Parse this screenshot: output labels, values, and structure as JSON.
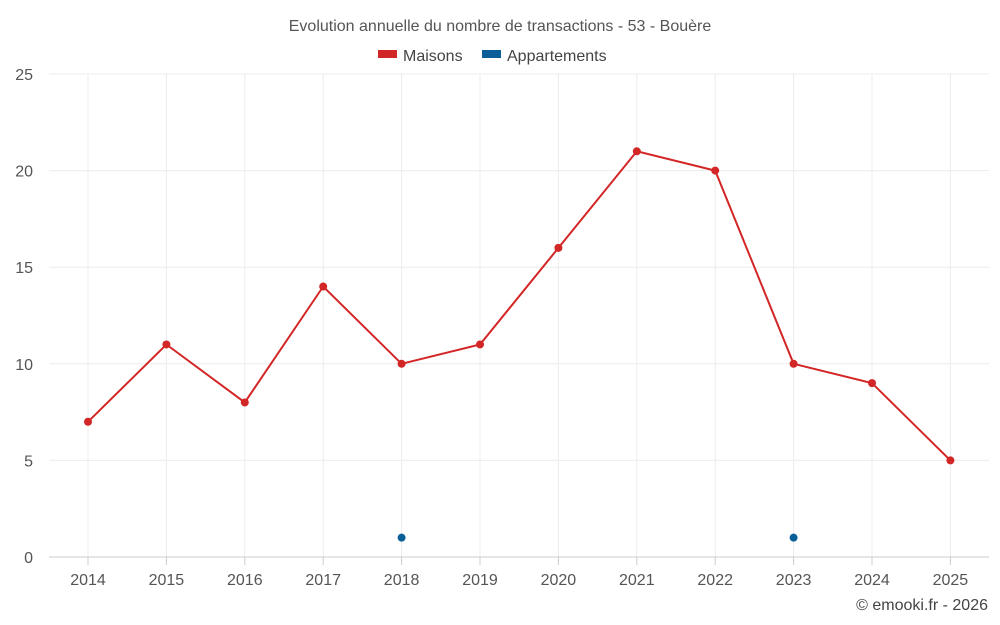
{
  "chart_data": {
    "type": "line",
    "title": "Evolution annuelle du nombre de transactions - 53 - Bouère",
    "categories": [
      "2014",
      "2015",
      "2016",
      "2017",
      "2018",
      "2019",
      "2020",
      "2021",
      "2022",
      "2023",
      "2024",
      "2025"
    ],
    "series": [
      {
        "name": "Maisons",
        "color": "#d32626",
        "values": [
          7,
          11,
          8,
          14,
          10,
          11,
          16,
          21,
          20,
          10,
          9,
          5
        ]
      },
      {
        "name": "Appartements",
        "color": "#0b5f99",
        "values": [
          null,
          null,
          null,
          null,
          1,
          null,
          null,
          null,
          null,
          1,
          null,
          null
        ]
      }
    ],
    "ylim": [
      0,
      25
    ],
    "yticks": [
      0,
      5,
      10,
      15,
      20,
      25
    ],
    "grid": true,
    "legend_position": "top-center",
    "credit": "© emooki.fr - 2026"
  }
}
